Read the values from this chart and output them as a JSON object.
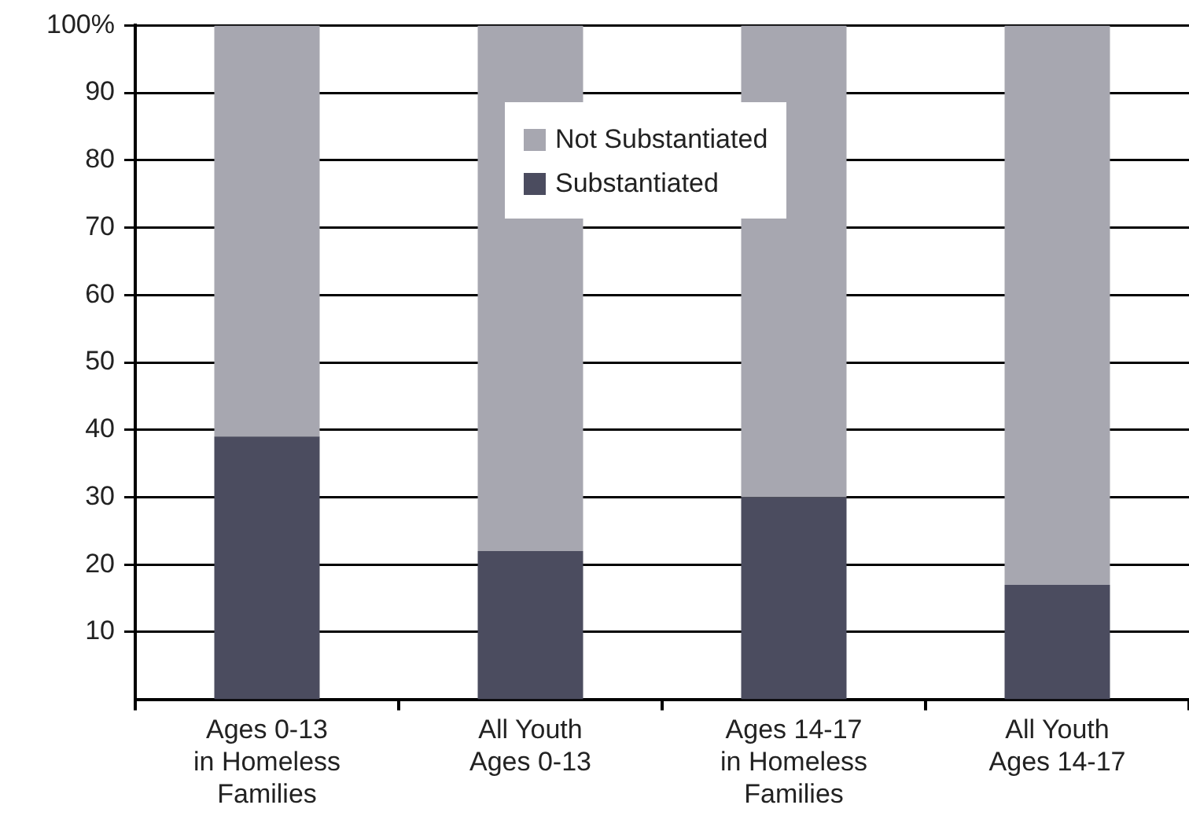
{
  "chart_data": {
    "type": "bar",
    "stacked": true,
    "categories": [
      "Ages 0-13\nin Homeless\nFamilies",
      "All Youth\nAges 0-13",
      "Ages 14-17\nin Homeless\nFamilies",
      "All Youth\nAges 14-17"
    ],
    "series": [
      {
        "name": "Substantiated",
        "color": "#4b4c5f",
        "values": [
          39,
          22,
          30,
          17
        ]
      },
      {
        "name": "Not Substantiated",
        "color": "#a7a7b0",
        "values": [
          61,
          78,
          70,
          83
        ]
      }
    ],
    "ylim": [
      0,
      100
    ],
    "yticks": [
      10,
      20,
      30,
      40,
      50,
      60,
      70,
      80,
      90,
      {
        "value": 100,
        "label": "100%"
      }
    ],
    "grid": "y",
    "legend": "top"
  }
}
